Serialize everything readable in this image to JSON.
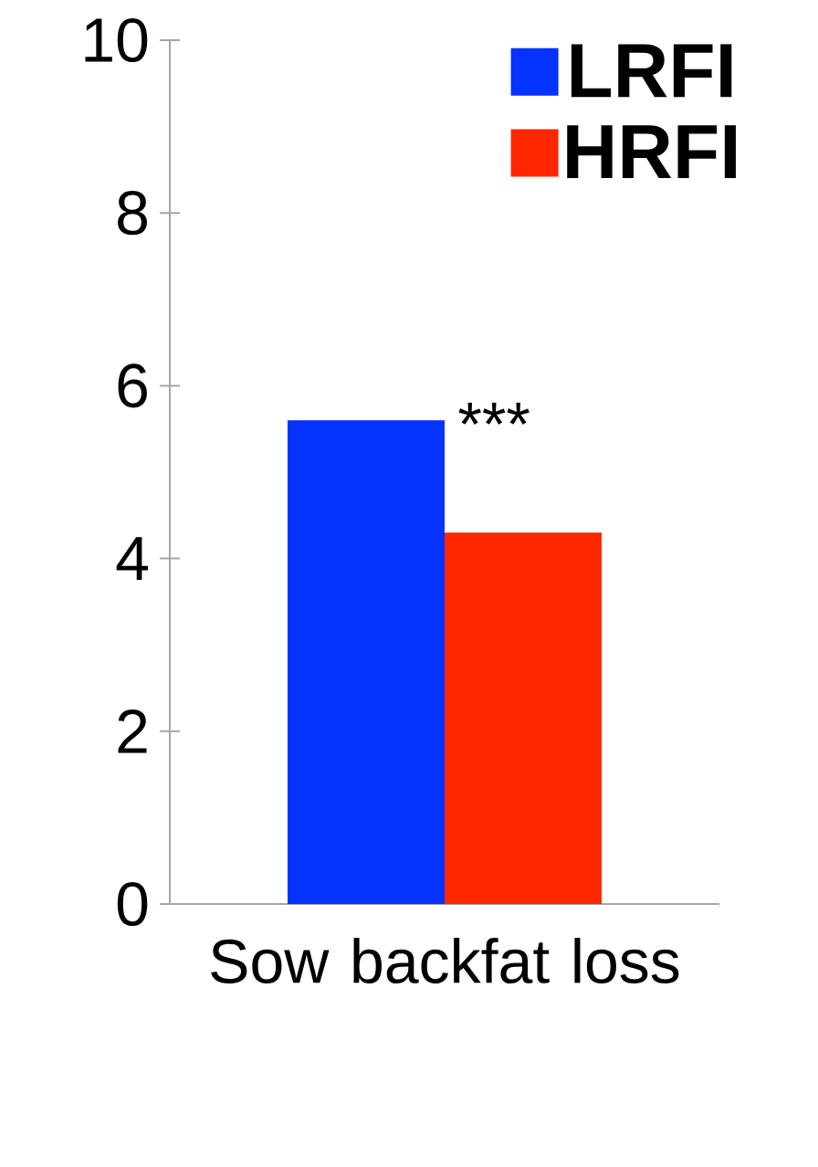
{
  "chart_data": {
    "type": "bar",
    "categories": [
      "Sow backfat loss"
    ],
    "series": [
      {
        "name": "LRFI",
        "color": "#0433ff",
        "values": [
          5.6
        ]
      },
      {
        "name": "HRFI",
        "color": "#ff2600",
        "values": [
          4.3
        ]
      }
    ],
    "ylim": [
      0,
      10
    ],
    "yticks": [
      0,
      2,
      4,
      6,
      8,
      10
    ],
    "legend": "top right",
    "grid": false,
    "annotations": [
      "***"
    ]
  }
}
